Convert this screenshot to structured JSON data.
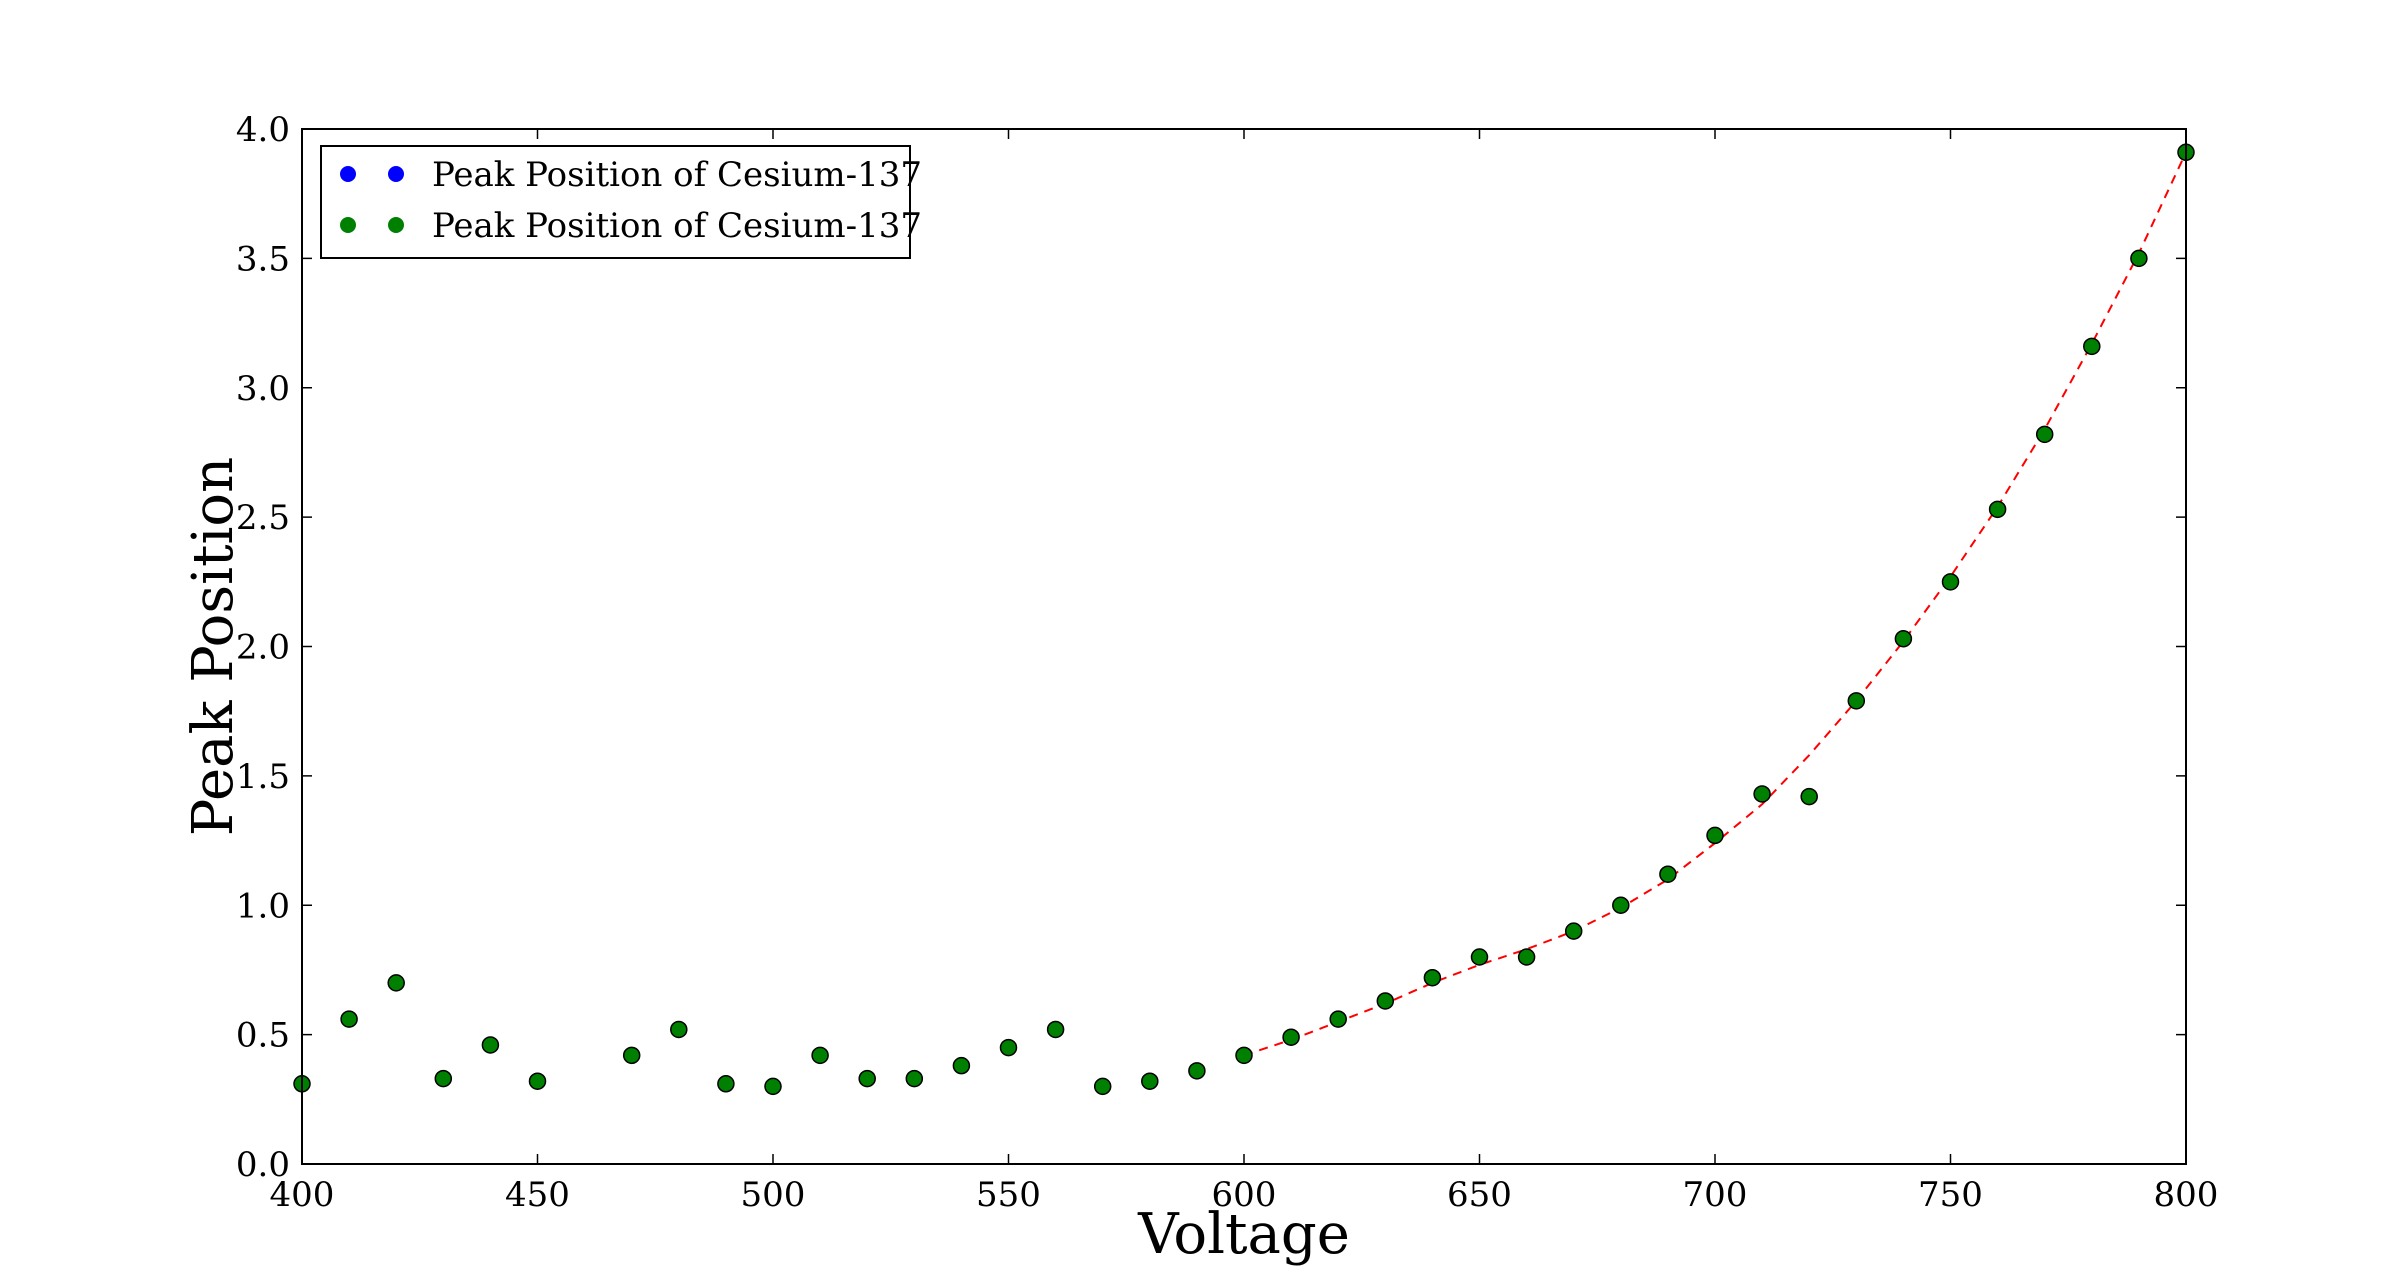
{
  "chart_data": {
    "type": "scatter",
    "title": "",
    "xlabel": "Voltage",
    "ylabel": "Peak Position",
    "xlim": [
      400,
      800
    ],
    "ylim": [
      0.0,
      4.0
    ],
    "grid": false,
    "x_ticks": [
      "400",
      "450",
      "500",
      "550",
      "600",
      "650",
      "700",
      "750",
      "800"
    ],
    "y_ticks": [
      "0.0",
      "0.5",
      "1.0",
      "1.5",
      "2.0",
      "2.5",
      "3.0",
      "3.5",
      "4.0"
    ],
    "legend": {
      "placement": "top-left",
      "entries": [
        {
          "label": "Peak Position of Cesium-137",
          "color": "#0000ff"
        },
        {
          "label": "Peak Position of Cesium-137",
          "color": "#008000"
        }
      ]
    },
    "series": [
      {
        "color": "#008000",
        "marker": "circle",
        "x": [
          400,
          410,
          420,
          430,
          440,
          450,
          470,
          480,
          490,
          500,
          510,
          520,
          530,
          540,
          550,
          560,
          570,
          580,
          590,
          600,
          610,
          620,
          630,
          640,
          650,
          660,
          670,
          680,
          690,
          700,
          710,
          720,
          730,
          740,
          750,
          760,
          770,
          780,
          790,
          800
        ],
        "y": [
          0.31,
          0.56,
          0.7,
          0.33,
          0.46,
          0.32,
          0.42,
          0.52,
          0.31,
          0.3,
          0.42,
          0.33,
          0.33,
          0.38,
          0.45,
          0.52,
          0.3,
          0.32,
          0.36,
          0.42,
          0.49,
          0.56,
          0.63,
          0.72,
          0.8,
          0.8,
          0.9,
          1.0,
          1.12,
          1.27,
          1.43,
          1.42,
          1.79,
          2.03,
          2.25,
          2.53,
          2.82,
          3.16,
          3.5,
          3.91
        ]
      }
    ],
    "fit": {
      "color": "#ff0000",
      "style": "dashed",
      "x": [
        600,
        610,
        620,
        630,
        640,
        650,
        660,
        670,
        680,
        690,
        700,
        710,
        720,
        730,
        740,
        750,
        760,
        770,
        780,
        790,
        800
      ],
      "y": [
        0.42,
        0.48,
        0.55,
        0.62,
        0.7,
        0.77,
        0.83,
        0.9,
        0.99,
        1.1,
        1.24,
        1.39,
        1.58,
        1.79,
        2.02,
        2.27,
        2.54,
        2.84,
        3.17,
        3.52,
        3.91
      ]
    }
  }
}
